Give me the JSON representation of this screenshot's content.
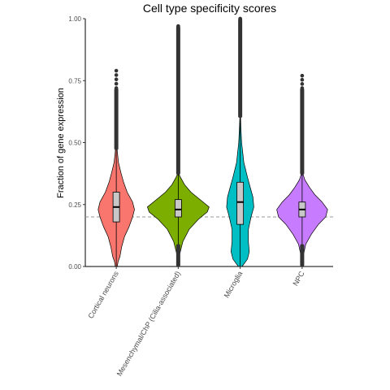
{
  "chart_data": {
    "type": "violin",
    "title": "Cell type specificity scores",
    "xlabel": "",
    "ylabel": "Fraction of gene expression",
    "ylim": [
      0,
      1
    ],
    "yticks": [
      "0.00",
      "0.25",
      "0.50",
      "0.75",
      "1.00"
    ],
    "yticks_values": [
      0,
      0.25,
      0.5,
      0.75,
      1.0
    ],
    "reference_line": 0.2,
    "grid": false,
    "categories": [
      "Cortical neurons",
      "Mesenchymal/ChP (Cilia-associated)",
      "Microglia",
      "NPC"
    ],
    "colors": [
      "#f8766d",
      "#7cae00",
      "#00bfc4",
      "#c77cff"
    ],
    "series": [
      {
        "violin_min": 0.0,
        "violin_max": 0.48,
        "density": [
          [
            0.0,
            0.005
          ],
          [
            0.02,
            0.01
          ],
          [
            0.04,
            0.02
          ],
          [
            0.08,
            0.03
          ],
          [
            0.12,
            0.045
          ],
          [
            0.16,
            0.07
          ],
          [
            0.2,
            0.09
          ],
          [
            0.23,
            0.1
          ],
          [
            0.26,
            0.09
          ],
          [
            0.3,
            0.06
          ],
          [
            0.34,
            0.04
          ],
          [
            0.38,
            0.025
          ],
          [
            0.42,
            0.012
          ],
          [
            0.46,
            0.006
          ],
          [
            0.48,
            0.004
          ]
        ],
        "box": {
          "q1": 0.18,
          "median": 0.24,
          "q3": 0.3,
          "whisker_low": 0.0,
          "whisker_high": 0.47
        },
        "outliers_max": 0.79,
        "outlier_band": [
          0.47,
          0.72
        ]
      },
      {
        "violin_min": 0.0,
        "violin_max": 0.37,
        "density": [
          [
            0.0,
            0.004
          ],
          [
            0.05,
            0.008
          ],
          [
            0.1,
            0.025
          ],
          [
            0.15,
            0.06
          ],
          [
            0.19,
            0.11
          ],
          [
            0.22,
            0.16
          ],
          [
            0.24,
            0.17
          ],
          [
            0.27,
            0.12
          ],
          [
            0.3,
            0.07
          ],
          [
            0.33,
            0.035
          ],
          [
            0.36,
            0.012
          ],
          [
            0.37,
            0.006
          ]
        ],
        "box": {
          "q1": 0.2,
          "median": 0.23,
          "q3": 0.27,
          "whisker_low": 0.09,
          "whisker_high": 0.37
        },
        "outliers_max": 0.97,
        "outlier_band": [
          0.37,
          0.97
        ],
        "outlier_low_band": [
          0.0,
          0.09
        ]
      },
      {
        "violin_min": 0.0,
        "violin_max": 0.6,
        "density": [
          [
            0.0,
            0.01
          ],
          [
            0.03,
            0.04
          ],
          [
            0.06,
            0.05
          ],
          [
            0.1,
            0.045
          ],
          [
            0.15,
            0.045
          ],
          [
            0.2,
            0.06
          ],
          [
            0.24,
            0.075
          ],
          [
            0.28,
            0.07
          ],
          [
            0.32,
            0.055
          ],
          [
            0.36,
            0.04
          ],
          [
            0.42,
            0.02
          ],
          [
            0.5,
            0.008
          ],
          [
            0.56,
            0.004
          ],
          [
            0.6,
            0.002
          ]
        ],
        "box": {
          "q1": 0.17,
          "median": 0.26,
          "q3": 0.34,
          "whisker_low": 0.0,
          "whisker_high": 0.6
        },
        "outliers_max": 1.0,
        "outlier_band": [
          0.6,
          1.0
        ]
      },
      {
        "violin_min": 0.0,
        "violin_max": 0.37,
        "density": [
          [
            0.0,
            0.004
          ],
          [
            0.05,
            0.008
          ],
          [
            0.09,
            0.02
          ],
          [
            0.13,
            0.05
          ],
          [
            0.17,
            0.09
          ],
          [
            0.2,
            0.13
          ],
          [
            0.23,
            0.14
          ],
          [
            0.26,
            0.11
          ],
          [
            0.29,
            0.07
          ],
          [
            0.32,
            0.04
          ],
          [
            0.35,
            0.015
          ],
          [
            0.37,
            0.006
          ]
        ],
        "box": {
          "q1": 0.2,
          "median": 0.23,
          "q3": 0.26,
          "whisker_low": 0.09,
          "whisker_high": 0.37
        },
        "outliers_max": 0.77,
        "outlier_band": [
          0.37,
          0.72
        ],
        "outlier_low_band": [
          0.0,
          0.09
        ]
      }
    ]
  }
}
